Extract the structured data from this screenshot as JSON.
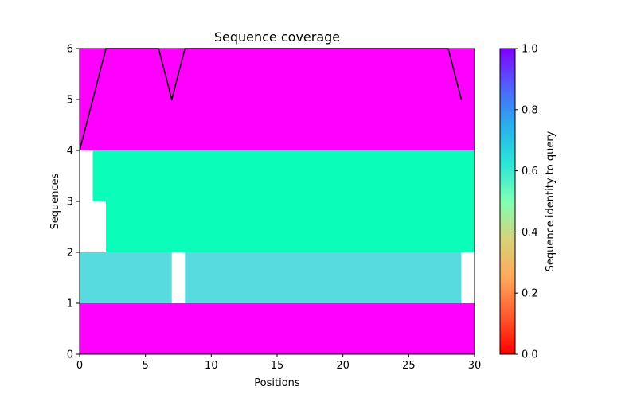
{
  "chart_data": {
    "type": "heatmap",
    "title": "Sequence coverage",
    "xlabel": "Positions",
    "ylabel": "Sequences",
    "xlim": [
      0,
      30
    ],
    "ylim": [
      0,
      6
    ],
    "xticks": [
      "0",
      "5",
      "10",
      "15",
      "20",
      "25",
      "30"
    ],
    "yticks": [
      "0",
      "1",
      "2",
      "3",
      "4",
      "5",
      "6"
    ],
    "grid": false,
    "colormap": "rainbow_r",
    "colorbar": {
      "label": "Sequence identity to query",
      "range": [
        0,
        1
      ],
      "ticks": [
        "0.0",
        "0.2",
        "0.4",
        "0.6",
        "0.8",
        "1.0"
      ]
    },
    "rows": [
      {
        "y": [
          0,
          1
        ],
        "identity": 1.0,
        "coverage": [
          [
            0,
            30
          ]
        ]
      },
      {
        "y": [
          1,
          2
        ],
        "identity": 0.67,
        "coverage": [
          [
            0,
            7
          ],
          [
            8,
            29
          ]
        ]
      },
      {
        "y": [
          2,
          3
        ],
        "identity": 0.52,
        "coverage": [
          [
            2,
            30
          ]
        ]
      },
      {
        "y": [
          3,
          4
        ],
        "identity": 0.52,
        "coverage": [
          [
            1,
            30
          ]
        ]
      },
      {
        "y": [
          4,
          5
        ],
        "identity": 1.0,
        "coverage": [
          [
            0,
            30
          ]
        ]
      },
      {
        "y": [
          5,
          6
        ],
        "identity": 1.0,
        "coverage": [
          [
            0,
            30
          ]
        ]
      }
    ],
    "coverage_line": {
      "x": [
        0,
        2,
        3,
        4,
        5,
        6,
        7,
        8,
        9,
        10,
        11,
        12,
        13,
        14,
        15,
        16,
        17,
        18,
        19,
        20,
        21,
        22,
        23,
        24,
        25,
        26,
        27,
        28,
        29
      ],
      "y": [
        4,
        6,
        6,
        6,
        6,
        6,
        5,
        6,
        6,
        6,
        6,
        6,
        6,
        6,
        6,
        6,
        6,
        6,
        6,
        6,
        6,
        6,
        6,
        6,
        6,
        6,
        6,
        6,
        5
      ]
    }
  }
}
